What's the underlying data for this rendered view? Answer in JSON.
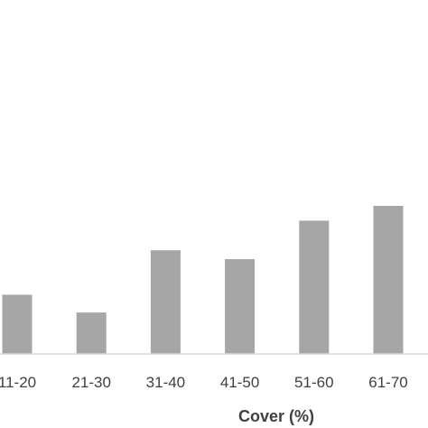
{
  "chart_data": {
    "type": "bar",
    "xlabel": "Cover (%)",
    "categories": [
      "11-20",
      "21-30",
      "31-40",
      "41-50",
      "51-60",
      "61-70"
    ],
    "values": [
      2.0,
      1.4,
      3.5,
      3.2,
      4.5,
      5.0
    ],
    "colors": {
      "bar": "#a6a6a6",
      "axis": "#d9d9d9",
      "text": "#404040"
    }
  }
}
